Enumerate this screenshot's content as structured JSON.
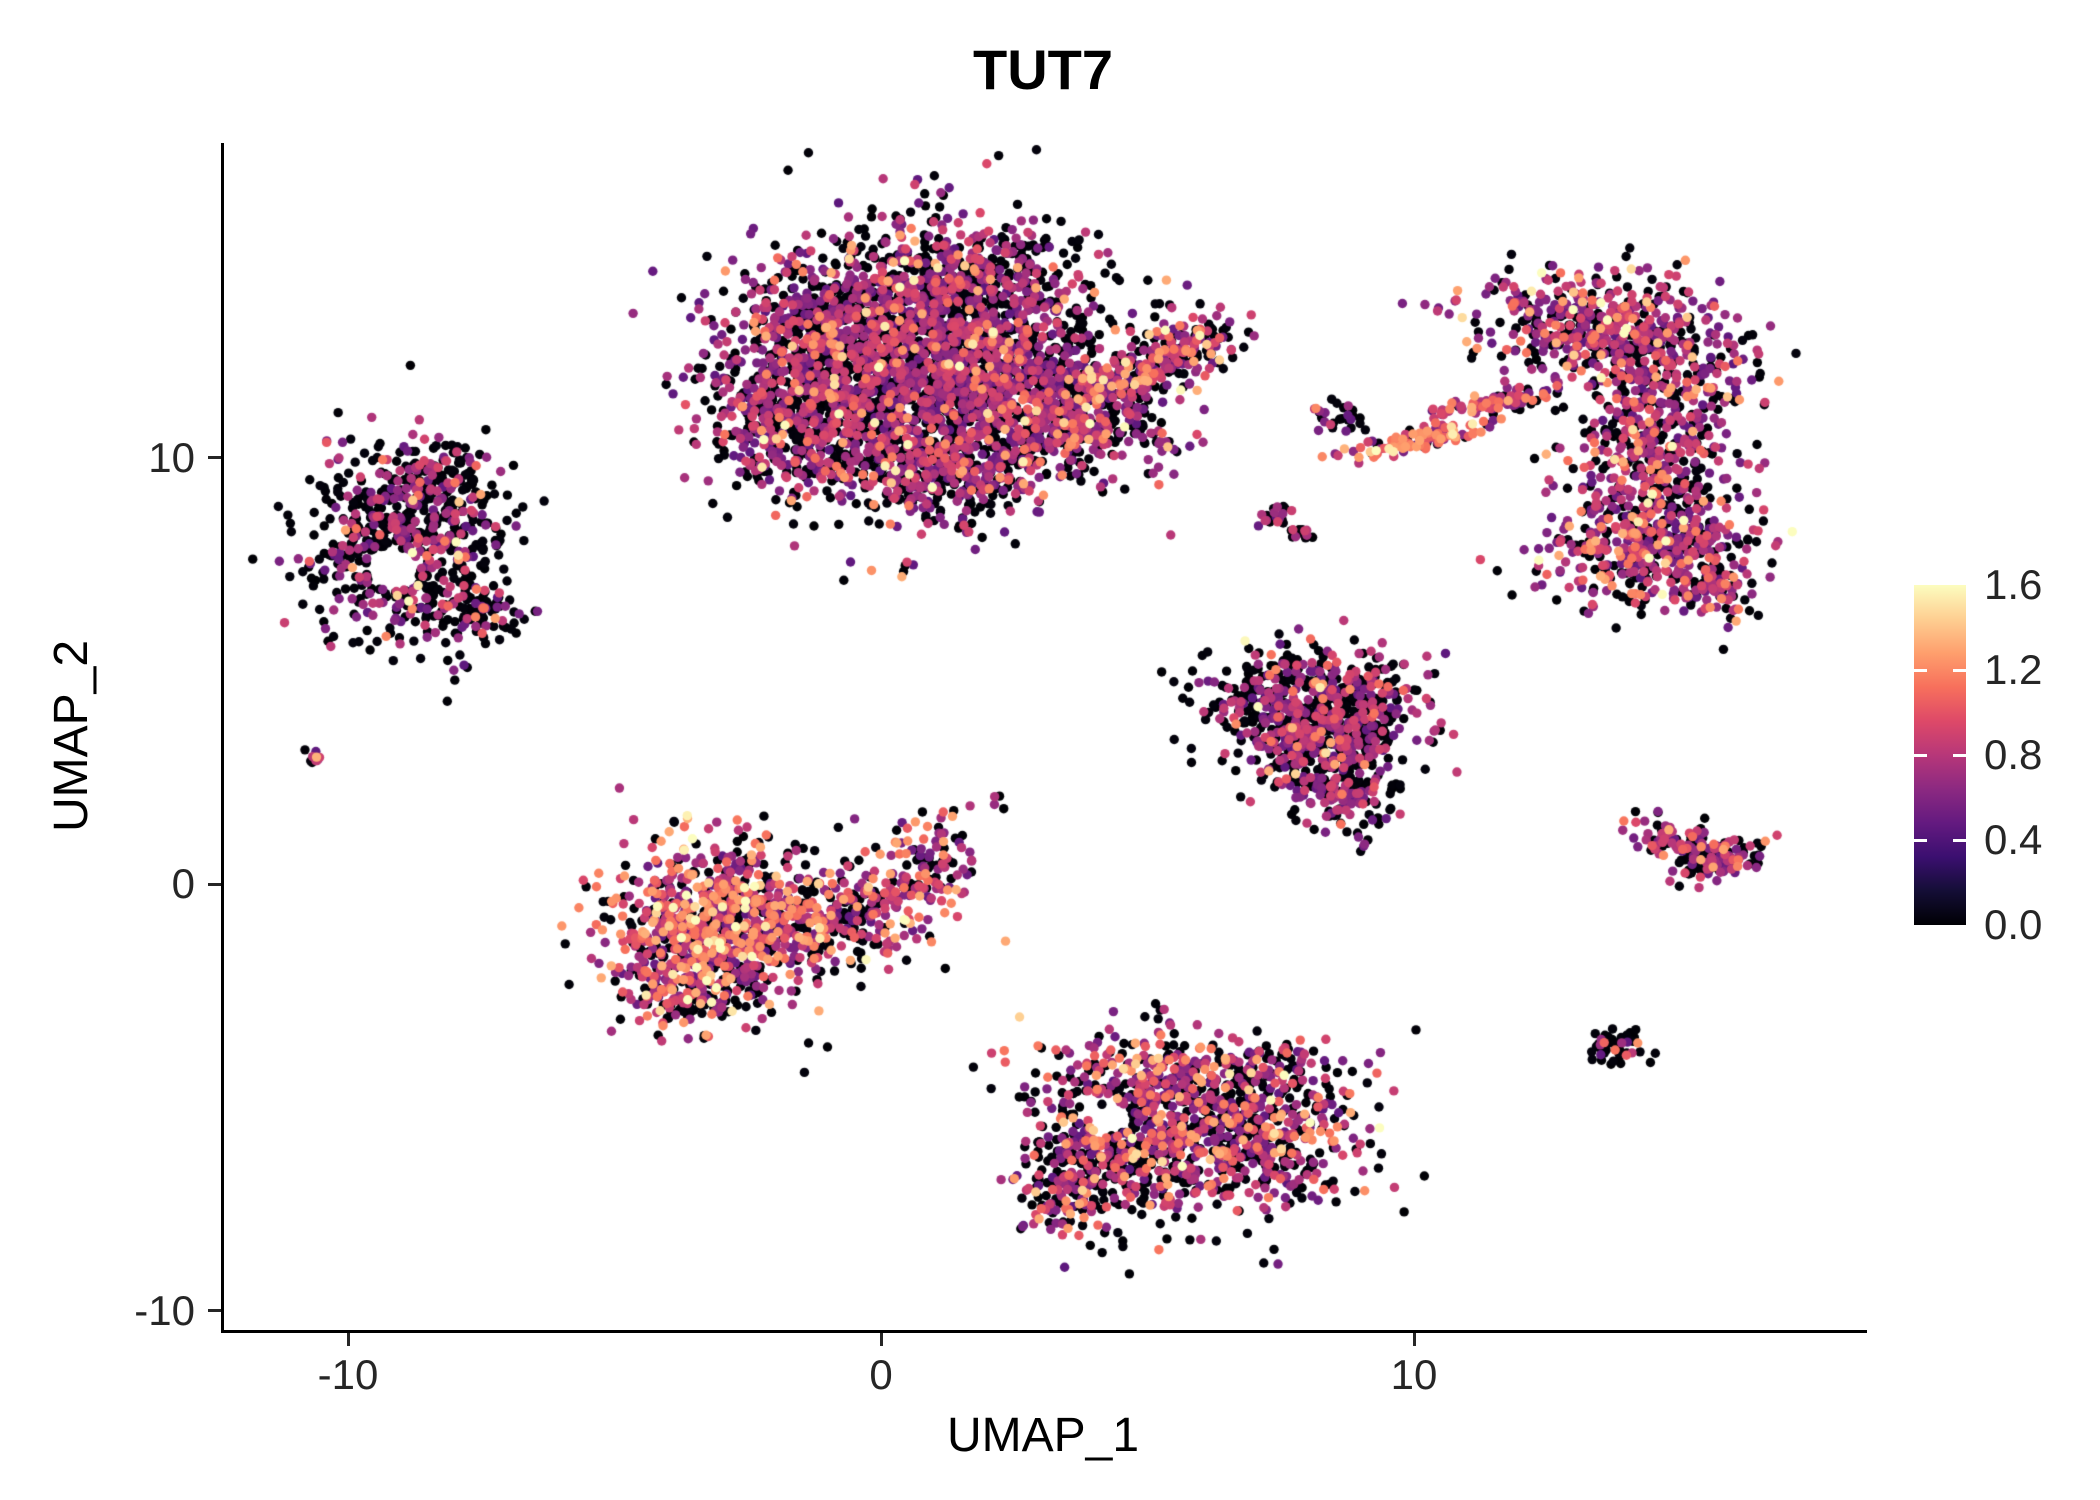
{
  "chart_data": {
    "type": "scatter",
    "title": "TUT7",
    "xlabel": "UMAP_1",
    "ylabel": "UMAP_2",
    "x_ticks": [
      {
        "label": "-10",
        "value": -10
      },
      {
        "label": "0",
        "value": 0
      },
      {
        "label": "10",
        "value": 10
      }
    ],
    "y_ticks": [
      {
        "label": "10",
        "value": 10
      },
      {
        "label": "0",
        "value": 0
      },
      {
        "label": "-10",
        "value": -10
      }
    ],
    "x_range": [
      -12.3,
      18.4
    ],
    "y_range": [
      -10.5,
      17.4
    ],
    "grid": false,
    "background": "#ffffff",
    "axis_color": "#000000",
    "point_radius": 4.7,
    "legend": {
      "position": "right",
      "min": 0.0,
      "max": 1.6,
      "tick_labels": [
        "1.6",
        "1.2",
        "0.8",
        "0.4",
        "0.0"
      ],
      "tick_values": [
        1.6,
        1.2,
        0.8,
        0.4,
        0.0
      ],
      "inner_tick_values": [
        0.4,
        0.8,
        1.2
      ]
    },
    "colormap": {
      "name": "magma",
      "stops": [
        [
          0.0,
          "#000004"
        ],
        [
          0.1,
          "#140e36"
        ],
        [
          0.2,
          "#3b0f70"
        ],
        [
          0.3,
          "#641a80"
        ],
        [
          0.4,
          "#8c2981"
        ],
        [
          0.5,
          "#b73779"
        ],
        [
          0.6,
          "#de4968"
        ],
        [
          0.7,
          "#f7705c"
        ],
        [
          0.8,
          "#fe9f6d"
        ],
        [
          0.9,
          "#fecf92"
        ],
        [
          1.0,
          "#fcfdbf"
        ]
      ]
    },
    "expr_ranges": {
      "zero": [
        0.0,
        0.03
      ],
      "mid": [
        0.45,
        0.95
      ],
      "high": [
        1.0,
        1.35
      ],
      "peak": [
        1.4,
        1.65
      ]
    },
    "clusters": [
      {
        "name": "top-center-main",
        "expr": {
          "zero": 0.48,
          "mid": 0.45,
          "high": 0.06,
          "peak": 0.01
        },
        "blobs": [
          {
            "n": 2300,
            "cx": 0.7,
            "cy": 12.3,
            "sx": 1.55,
            "sy": 1.45
          },
          {
            "n": 450,
            "cx": -1.6,
            "cy": 11.0,
            "sx": 0.85,
            "sy": 0.95
          },
          {
            "n": 320,
            "cx": 1.2,
            "cy": 9.7,
            "sx": 1.15,
            "sy": 0.65
          },
          {
            "n": 280,
            "cx": 3.1,
            "cy": 11.2,
            "sx": 0.8,
            "sy": 0.85
          },
          {
            "n": 240,
            "cx": 1.8,
            "cy": 14.2,
            "sx": 1.15,
            "sy": 0.55
          },
          {
            "n": 150,
            "cx": -1.2,
            "cy": 13.3,
            "sx": 0.7,
            "sy": 0.6
          }
        ]
      },
      {
        "name": "top-center-fingers",
        "expr": {
          "zero": 0.4,
          "mid": 0.42,
          "high": 0.15,
          "peak": 0.03
        },
        "blobs": [
          {
            "n": 140,
            "cx": 4.2,
            "cy": 11.7,
            "sx": 0.65,
            "sy": 0.28,
            "rot": 18
          },
          {
            "n": 130,
            "cx": 4.0,
            "cy": 10.7,
            "sx": 0.6,
            "sy": 0.28,
            "rot": 12
          },
          {
            "n": 190,
            "cx": 5.5,
            "cy": 12.5,
            "sx": 0.6,
            "sy": 0.33,
            "rot": 28
          },
          {
            "n": 25,
            "cx": 5.1,
            "cy": 10.1,
            "sx": 0.45,
            "sy": 0.35
          }
        ]
      },
      {
        "name": "left",
        "expr": {
          "zero": 0.66,
          "mid": 0.31,
          "high": 0.025,
          "peak": 0.005
        },
        "blobs": [
          {
            "n": 700,
            "cx": -8.9,
            "cy": 7.9,
            "sx": 0.95,
            "sy": 1.1,
            "hole": [
              -9.15,
              7.4,
              0.5
            ]
          },
          {
            "n": 90,
            "cx": -8.3,
            "cy": 9.6,
            "sx": 0.45,
            "sy": 0.45
          },
          {
            "n": 60,
            "cx": -7.5,
            "cy": 6.4,
            "sx": 0.4,
            "sy": 0.35
          }
        ]
      },
      {
        "name": "tiny-left-dot",
        "expr": {
          "zero": 0.3,
          "mid": 0.6,
          "high": 0.1,
          "peak": 0.0
        },
        "blobs": [
          {
            "n": 10,
            "cx": -10.7,
            "cy": 3.0,
            "sx": 0.13,
            "sy": 0.11
          }
        ]
      },
      {
        "name": "center-left",
        "expr": {
          "zero": 0.33,
          "mid": 0.42,
          "high": 0.22,
          "peak": 0.03
        },
        "blobs": [
          {
            "n": 850,
            "cx": -3.2,
            "cy": -1.0,
            "sx": 1.0,
            "sy": 0.95
          },
          {
            "n": 280,
            "cx": -0.9,
            "cy": -0.7,
            "sx": 1.0,
            "sy": 0.55
          },
          {
            "n": 110,
            "cx": 0.8,
            "cy": 0.6,
            "sx": 0.5,
            "sy": 0.55
          },
          {
            "n": 150,
            "cx": -3.6,
            "cy": -2.5,
            "sx": 0.7,
            "sy": 0.45
          }
        ]
      },
      {
        "name": "middle-right",
        "expr": {
          "zero": 0.55,
          "mid": 0.4,
          "high": 0.045,
          "peak": 0.005
        },
        "blobs": [
          {
            "n": 520,
            "cx": 8.1,
            "cy": 4.3,
            "sx": 1.0,
            "sy": 0.62
          },
          {
            "n": 300,
            "cx": 8.3,
            "cy": 3.1,
            "sx": 0.72,
            "sy": 0.58
          },
          {
            "n": 110,
            "cx": 8.6,
            "cy": 2.1,
            "sx": 0.42,
            "sy": 0.38
          }
        ]
      },
      {
        "name": "bottom-center",
        "expr": {
          "zero": 0.43,
          "mid": 0.4,
          "high": 0.15,
          "peak": 0.02
        },
        "blobs": [
          {
            "n": 620,
            "cx": 6.9,
            "cy": -5.8,
            "sx": 1.05,
            "sy": 0.9
          },
          {
            "n": 470,
            "cx": 4.4,
            "cy": -6.2,
            "sx": 0.8,
            "sy": 0.9,
            "hole": [
              4.3,
              -5.4,
              0.48
            ]
          },
          {
            "n": 250,
            "cx": 5.7,
            "cy": -4.4,
            "sx": 1.35,
            "sy": 0.45
          },
          {
            "n": 70,
            "cx": 3.3,
            "cy": -7.4,
            "sx": 0.38,
            "sy": 0.45
          }
        ]
      },
      {
        "name": "right-tall",
        "expr": {
          "zero": 0.36,
          "mid": 0.52,
          "high": 0.105,
          "peak": 0.015
        },
        "blobs": [
          {
            "n": 560,
            "cx": 13.6,
            "cy": 13.0,
            "sx": 1.25,
            "sy": 0.7,
            "rot": -12
          },
          {
            "n": 420,
            "cx": 14.6,
            "cy": 10.5,
            "sx": 0.75,
            "sy": 1.0
          },
          {
            "n": 480,
            "cx": 14.4,
            "cy": 8.0,
            "sx": 0.95,
            "sy": 0.72
          },
          {
            "n": 70,
            "cx": 15.6,
            "cy": 6.9,
            "sx": 0.4,
            "sy": 0.3
          }
        ]
      },
      {
        "name": "orange-streak",
        "expr": {
          "zero": 0.12,
          "mid": 0.33,
          "high": 0.48,
          "peak": 0.07
        },
        "blobs": [
          {
            "n": 110,
            "cx": 10.1,
            "cy": 10.4,
            "sx": 0.7,
            "sy": 0.13,
            "rot": 14
          }
        ]
      },
      {
        "name": "purple-streak",
        "expr": {
          "zero": 0.25,
          "mid": 0.55,
          "high": 0.19,
          "peak": 0.01
        },
        "blobs": [
          {
            "n": 85,
            "cx": 11.6,
            "cy": 11.3,
            "sx": 0.55,
            "sy": 0.12,
            "rot": 14
          }
        ]
      },
      {
        "name": "small-mid-dots",
        "expr": {
          "zero": 0.62,
          "mid": 0.34,
          "high": 0.04,
          "peak": 0.0
        },
        "blobs": [
          {
            "n": 28,
            "cx": 8.5,
            "cy": 10.9,
            "sx": 0.24,
            "sy": 0.18
          },
          {
            "n": 20,
            "cx": 7.4,
            "cy": 8.6,
            "sx": 0.16,
            "sy": 0.14
          },
          {
            "n": 14,
            "cx": 7.9,
            "cy": 8.2,
            "sx": 0.13,
            "sy": 0.11
          }
        ]
      },
      {
        "name": "small-right",
        "expr": {
          "zero": 0.5,
          "mid": 0.44,
          "high": 0.06,
          "peak": 0.0
        },
        "blobs": [
          {
            "n": 120,
            "cx": 15.2,
            "cy": 0.95,
            "sx": 0.55,
            "sy": 0.22,
            "rot": -18
          },
          {
            "n": 85,
            "cx": 15.7,
            "cy": 0.5,
            "sx": 0.45,
            "sy": 0.18,
            "rot": 18
          }
        ]
      },
      {
        "name": "bottom-right-dot",
        "expr": {
          "zero": 0.76,
          "mid": 0.15,
          "high": 0.09,
          "peak": 0.0
        },
        "blobs": [
          {
            "n": 48,
            "cx": 13.8,
            "cy": -3.8,
            "sx": 0.27,
            "sy": 0.25
          }
        ]
      },
      {
        "name": "scattered-singletons",
        "expr": {
          "zero": 0.5,
          "mid": 0.4,
          "high": 0.1,
          "peak": 0.0
        },
        "blobs": [
          {
            "n": 4,
            "cx": 9.0,
            "cy": 0.9,
            "sx": 0.12,
            "sy": 0.1
          },
          {
            "n": 5,
            "cx": 2.1,
            "cy": 1.8,
            "sx": 0.18,
            "sy": 0.14
          },
          {
            "n": 4,
            "cx": 5.1,
            "cy": -3.0,
            "sx": 0.15,
            "sy": 0.12
          },
          {
            "n": 6,
            "cx": 0.3,
            "cy": 7.4,
            "sx": 0.3,
            "sy": 0.2
          }
        ]
      }
    ]
  }
}
